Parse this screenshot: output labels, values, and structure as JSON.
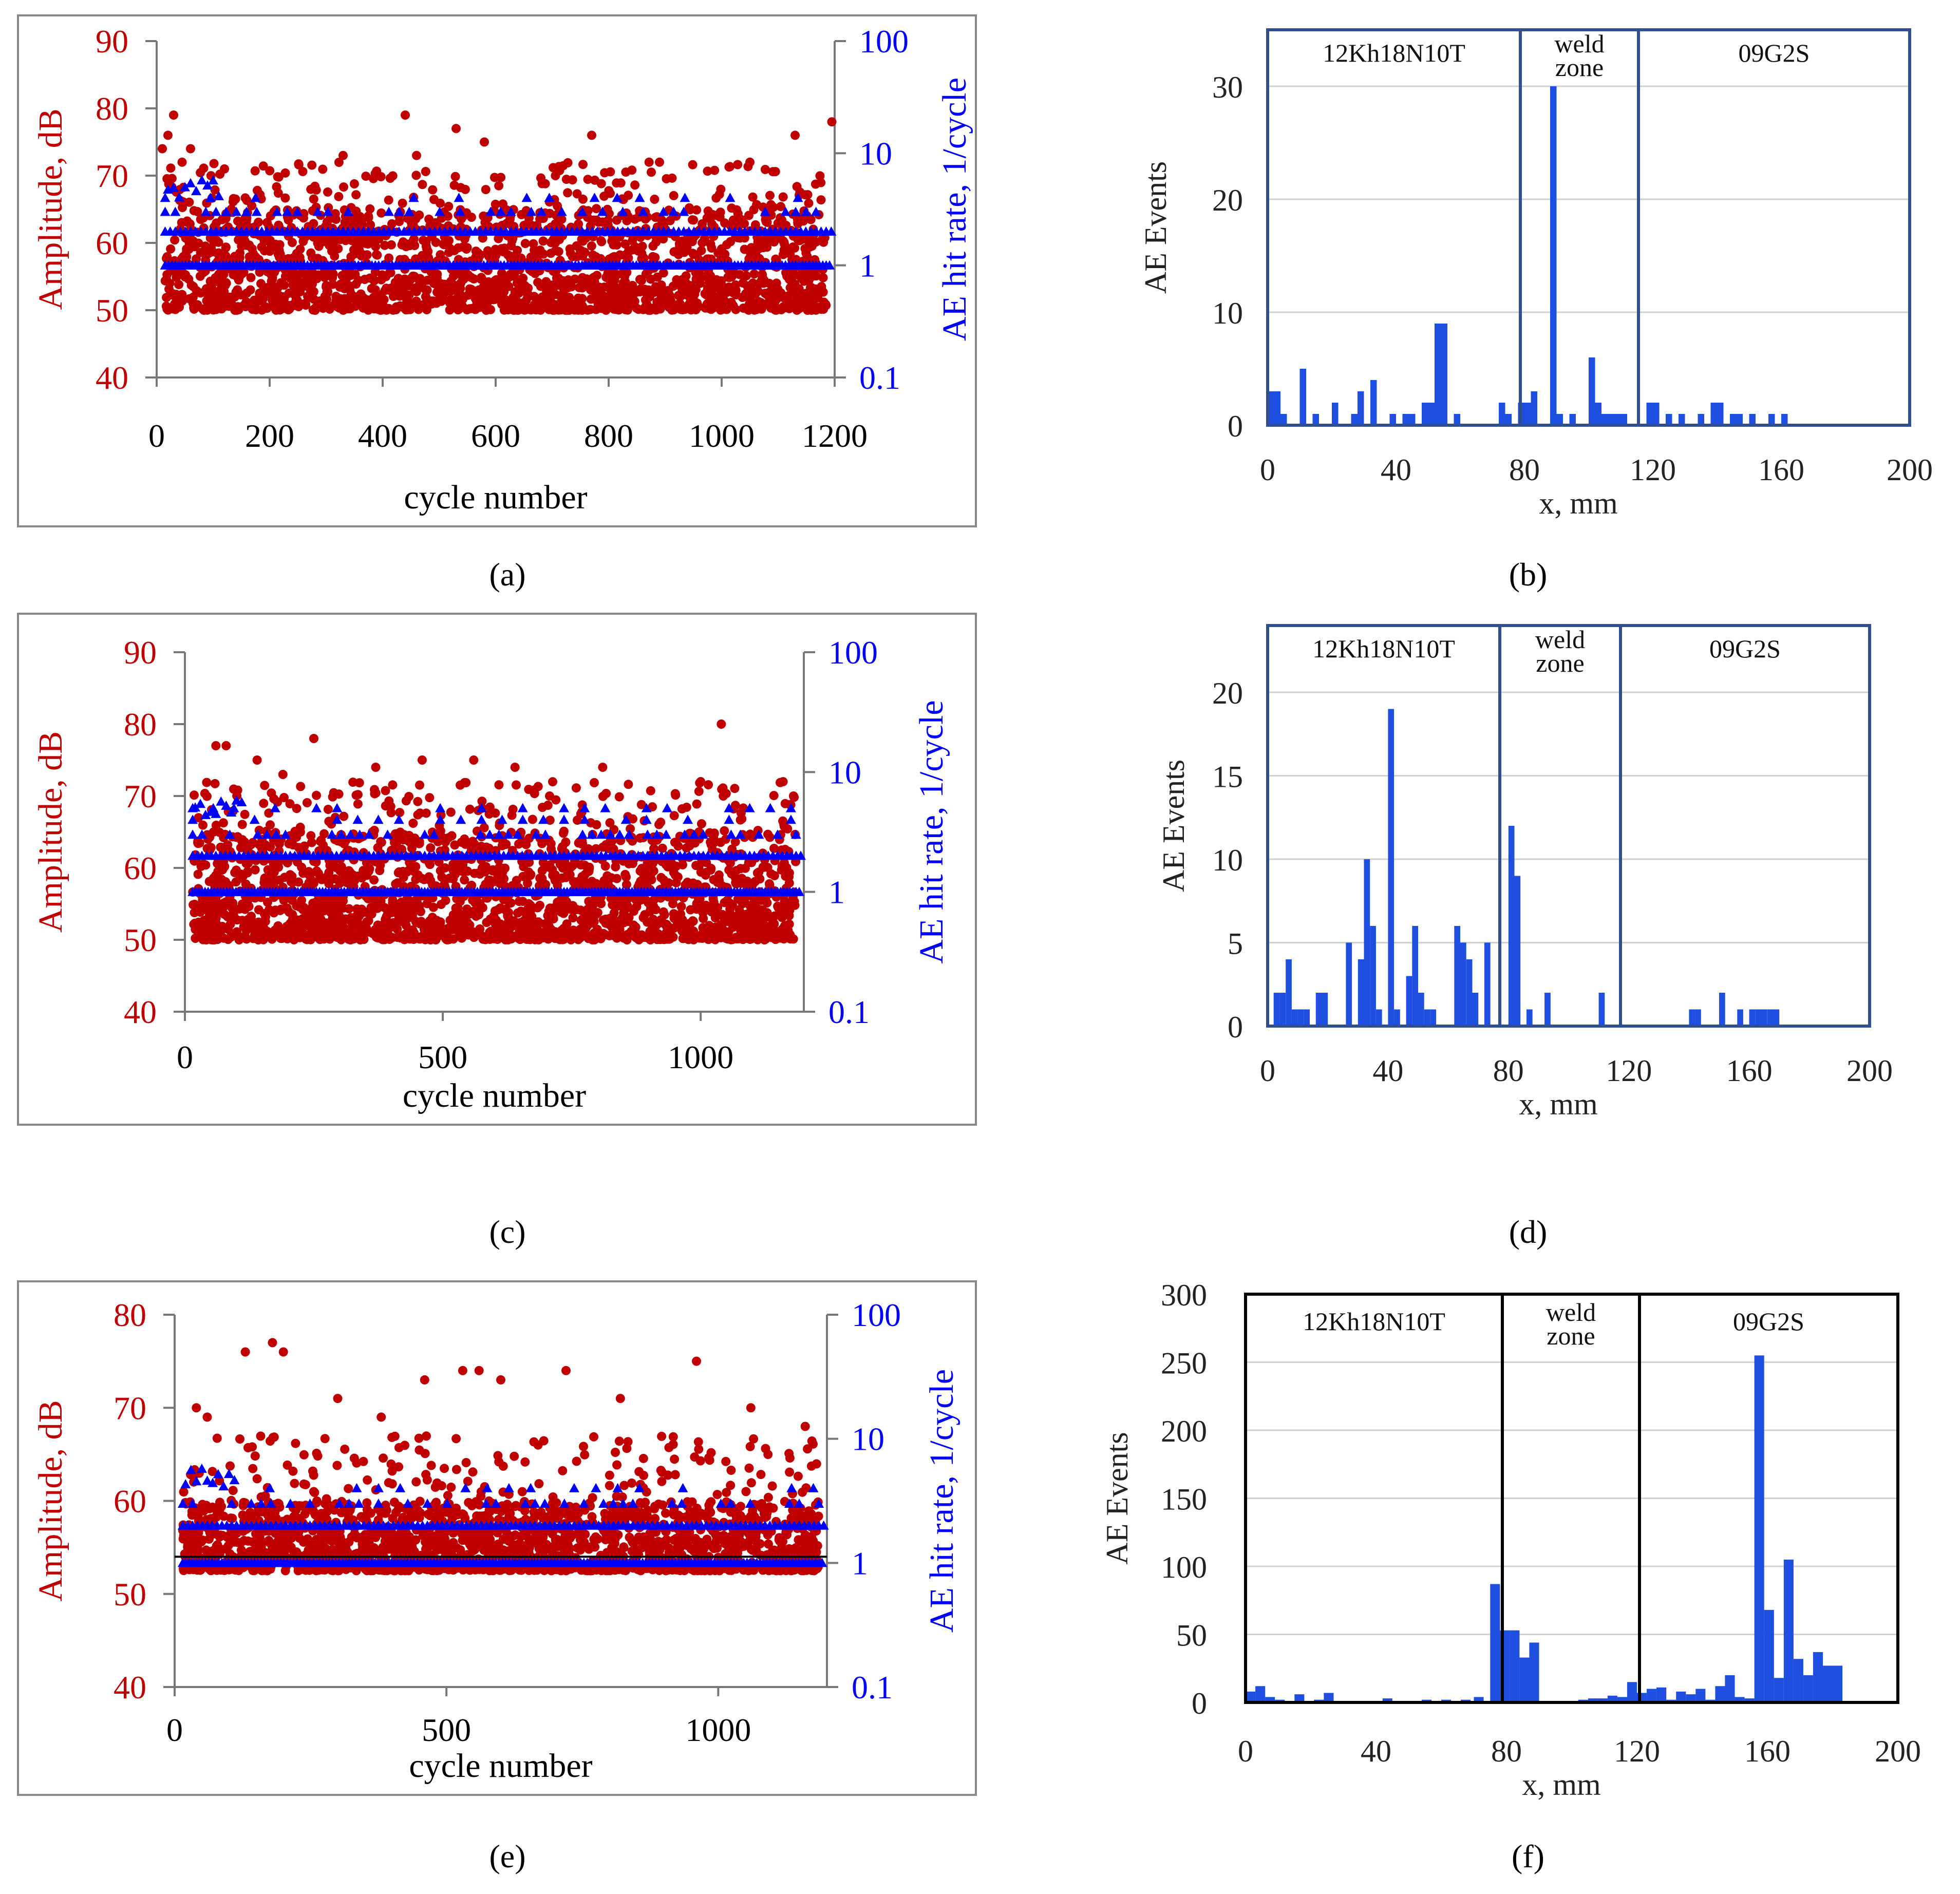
{
  "colors": {
    "amplitude": "#c00000",
    "hitrate": "#0000ff",
    "histogram": "#1f4fe0",
    "frame_blue": "#2f4f8f",
    "axis": "#777777"
  },
  "panel_labels": [
    "(a)",
    "(b)",
    "(c)",
    "(d)",
    "(e)",
    "(f)"
  ],
  "chart_data": [
    {
      "id": "a",
      "type": "scatter",
      "xlabel": "cycle number",
      "ylabel_left": "Amplitude, dB",
      "ylabel_right": "AE hit rate, 1/cycle",
      "xlim": [
        0,
        1200
      ],
      "xticks": [
        "0",
        "200",
        "400",
        "600",
        "800",
        "1000",
        "1200"
      ],
      "ylim_left": [
        40,
        90
      ],
      "yticks_left": [
        "40",
        "50",
        "60",
        "70",
        "80",
        "90"
      ],
      "ylim_right": [
        0.1,
        100
      ],
      "yticks_right": [
        "0.1",
        "1",
        "10",
        "100"
      ],
      "series": [
        {
          "name": "Amplitude",
          "axis": "left",
          "marker": "circle",
          "baseline": 50,
          "density": "dense 50–65 dB",
          "outliers_x": [
            10,
            20,
            30,
            45,
            60,
            120,
            330,
            440,
            460,
            530,
            580,
            770,
            890,
            1050,
            1130,
            1195
          ],
          "outliers_y": [
            74,
            76,
            79,
            72,
            74,
            71,
            73,
            79,
            73,
            77,
            75,
            76,
            72,
            72,
            76,
            78
          ]
        },
        {
          "name": "AE hit rate",
          "axis": "right",
          "marker": "triangle",
          "levels": [
            1,
            2,
            3,
            4
          ]
        }
      ]
    },
    {
      "id": "b",
      "type": "bar",
      "xlabel": "x, mm",
      "ylabel": "AE Events",
      "xlim": [
        0,
        200
      ],
      "xticks": [
        "0",
        "40",
        "80",
        "120",
        "160",
        "200"
      ],
      "ylim": [
        0,
        35
      ],
      "yticks": [
        "0",
        "10",
        "20",
        "30"
      ],
      "zones": {
        "left": "12Kh18N10T",
        "weld": [
          "weld",
          "zone"
        ],
        "right": "09G2S"
      },
      "zone_bounds": [
        0,
        80,
        118,
        200
      ],
      "x": [
        0,
        2,
        4,
        10,
        14,
        20,
        26,
        28,
        32,
        38,
        42,
        44,
        48,
        50,
        52,
        54,
        58,
        72,
        74,
        78,
        80,
        82,
        88,
        90,
        94,
        100,
        102,
        104,
        106,
        108,
        110,
        118,
        120,
        124,
        128,
        134,
        138,
        140,
        144,
        146,
        150,
        156,
        160
      ],
      "values": [
        3,
        3,
        1,
        5,
        1,
        2,
        1,
        3,
        4,
        1,
        1,
        1,
        2,
        2,
        9,
        9,
        1,
        2,
        1,
        2,
        2,
        3,
        30,
        1,
        1,
        6,
        2,
        1,
        1,
        1,
        1,
        2,
        2,
        1,
        1,
        1,
        2,
        2,
        1,
        1,
        1,
        1,
        1
      ],
      "bin_width": 2
    },
    {
      "id": "c",
      "type": "scatter",
      "xlabel": "cycle number",
      "ylabel_left": "Amplitude, dB",
      "ylabel_right": "AE hit rate, 1/cycle",
      "xlim": [
        0,
        1200
      ],
      "xticks": [
        "0",
        "500",
        "1000"
      ],
      "ylim_left": [
        40,
        90
      ],
      "yticks_left": [
        "40",
        "50",
        "60",
        "70",
        "80",
        "90"
      ],
      "ylim_right": [
        0.1,
        100
      ],
      "yticks_right": [
        "0.1",
        "1",
        "10",
        "100"
      ],
      "series": [
        {
          "name": "Amplitude",
          "axis": "left",
          "marker": "circle",
          "baseline": 50,
          "density": "dense 50–65 dB",
          "outliers_x": [
            60,
            80,
            140,
            190,
            250,
            370,
            460,
            560,
            640,
            810,
            1000,
            1040,
            1180
          ],
          "outliers_y": [
            77,
            77,
            75,
            73,
            78,
            74,
            75,
            75,
            74,
            74,
            72,
            80,
            70
          ]
        },
        {
          "name": "AE hit rate",
          "axis": "right",
          "marker": "triangle",
          "levels": [
            1,
            2,
            3,
            4,
            5
          ]
        }
      ]
    },
    {
      "id": "d",
      "type": "bar",
      "xlabel": "x, mm",
      "ylabel": "AE Events",
      "xlim": [
        0,
        200
      ],
      "xticks": [
        "0",
        "40",
        "80",
        "120",
        "160",
        "200"
      ],
      "ylim": [
        0,
        24
      ],
      "yticks": [
        "0",
        "5",
        "10",
        "15",
        "20"
      ],
      "zones": {
        "left": "12Kh18N10T",
        "weld": [
          "weld",
          "zone"
        ],
        "right": "09G2S"
      },
      "zone_bounds": [
        0,
        80,
        120,
        200
      ],
      "x": [
        2,
        4,
        6,
        8,
        10,
        12,
        16,
        18,
        26,
        30,
        32,
        34,
        36,
        40,
        42,
        46,
        48,
        50,
        52,
        54,
        62,
        64,
        66,
        68,
        72,
        80,
        82,
        86,
        92,
        110,
        140,
        142,
        150,
        156,
        160,
        162,
        164,
        166,
        168
      ],
      "values": [
        2,
        2,
        4,
        1,
        1,
        1,
        2,
        2,
        5,
        4,
        10,
        6,
        1,
        19,
        1,
        3,
        6,
        2,
        1,
        1,
        6,
        5,
        4,
        2,
        5,
        12,
        9,
        1,
        2,
        2,
        1,
        1,
        2,
        1,
        1,
        1,
        1,
        1,
        1
      ],
      "bin_width": 2
    },
    {
      "id": "e",
      "type": "scatter",
      "xlabel": "cycle number",
      "ylabel_left": "Amplitude, dB",
      "ylabel_right": "AE hit rate, 1/cycle",
      "xlim": [
        0,
        1200
      ],
      "xticks": [
        "0",
        "500",
        "1000"
      ],
      "ylim_left": [
        40,
        80
      ],
      "yticks_left": [
        "40",
        "50",
        "60",
        "70",
        "80"
      ],
      "ylim_right": [
        0.1,
        100
      ],
      "yticks_right": [
        "0.1",
        "1",
        "10",
        "100"
      ],
      "series": [
        {
          "name": "Amplitude",
          "axis": "left",
          "marker": "circle",
          "baseline": 52.5,
          "density": "dense 52–60 dB",
          "outliers_x": [
            40,
            60,
            130,
            180,
            200,
            300,
            380,
            460,
            530,
            560,
            600,
            720,
            820,
            960,
            1060,
            1160
          ],
          "outliers_y": [
            70,
            69,
            76,
            77,
            76,
            71,
            69,
            73,
            74,
            74,
            73,
            74,
            71,
            75,
            70,
            68
          ]
        },
        {
          "name": "AE hit rate",
          "axis": "right",
          "marker": "triangle",
          "levels": [
            1,
            2,
            3,
            4
          ]
        }
      ],
      "threshold_line": 54
    },
    {
      "id": "f",
      "type": "bar",
      "xlabel": "x, mm",
      "ylabel": "AE Events",
      "xlim": [
        0,
        200
      ],
      "xticks": [
        "0",
        "40",
        "80",
        "120",
        "160",
        "200"
      ],
      "ylim": [
        0,
        300
      ],
      "yticks": [
        "0",
        "50",
        "100",
        "150",
        "200",
        "250",
        "300"
      ],
      "zones": {
        "left": "12Kh18N10T",
        "weld": [
          "weld",
          "zone"
        ],
        "right": "09G2S"
      },
      "zone_bounds": [
        0,
        75,
        116,
        200
      ],
      "x": [
        0,
        3,
        6,
        9,
        15,
        21,
        24,
        27,
        33,
        38,
        42,
        48,
        54,
        60,
        66,
        70,
        75,
        78,
        81,
        84,
        87,
        90,
        93,
        96,
        99,
        102,
        105,
        108,
        111,
        114,
        117,
        120,
        123,
        126,
        129,
        132,
        135,
        138,
        141,
        144,
        147,
        150,
        153,
        156,
        159,
        162,
        165,
        168,
        171,
        174,
        177,
        180,
        183,
        186
      ],
      "values": [
        8,
        12,
        4,
        2,
        6,
        2,
        7,
        1,
        1,
        1,
        3,
        1,
        2,
        2,
        2,
        4,
        87,
        53,
        53,
        33,
        44,
        1,
        1,
        1,
        1,
        2,
        3,
        3,
        5,
        4,
        15,
        7,
        10,
        11,
        2,
        8,
        6,
        10,
        2,
        12,
        20,
        4,
        3,
        255,
        68,
        18,
        105,
        32,
        20,
        37,
        27,
        27,
        1,
        1
      ],
      "bin_width": 3
    }
  ]
}
